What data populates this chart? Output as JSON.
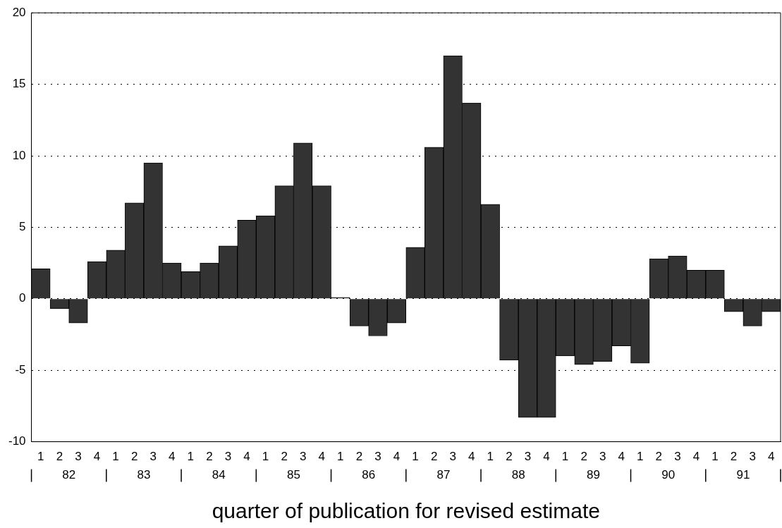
{
  "chart_data": {
    "type": "bar",
    "xlabel": "quarter of publication for revised estimate",
    "categories": [
      "1",
      "2",
      "3",
      "4",
      "1",
      "2",
      "3",
      "4",
      "1",
      "2",
      "3",
      "4",
      "1",
      "2",
      "3",
      "4",
      "1",
      "2",
      "3",
      "4",
      "1",
      "2",
      "3",
      "4",
      "1",
      "2",
      "3",
      "4",
      "1",
      "2",
      "3",
      "4",
      "1",
      "2",
      "3",
      "4",
      "1",
      "2",
      "3",
      "4"
    ],
    "values": [
      2.1,
      -0.7,
      -1.7,
      2.6,
      3.4,
      6.7,
      9.5,
      2.5,
      1.9,
      2.5,
      3.7,
      5.5,
      5.8,
      7.9,
      10.9,
      7.9,
      0.1,
      -1.9,
      -2.6,
      -1.7,
      3.6,
      10.6,
      17.0,
      13.7,
      6.6,
      -4.3,
      -8.3,
      -8.3,
      -4.0,
      -4.6,
      -4.4,
      -3.3,
      -4.5,
      2.8,
      3.0,
      2.0,
      2.0,
      -0.9,
      -1.9,
      -0.9
    ],
    "color": "#333333",
    "annotations": [
      "82",
      "83",
      "84",
      "85",
      "86",
      "87",
      "88",
      "89",
      "90",
      "91"
    ],
    "ylim": [
      -10,
      20
    ],
    "yticks": [
      -10,
      -5,
      0,
      5,
      10,
      15,
      20
    ],
    "grid": "y",
    "legend": false
  }
}
